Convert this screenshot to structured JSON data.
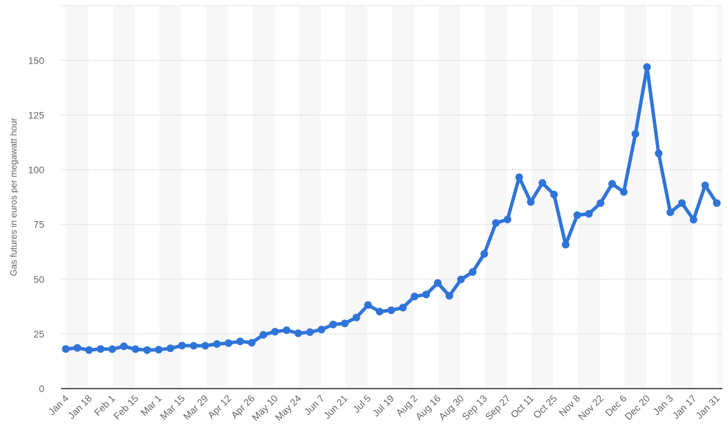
{
  "chart_data": {
    "type": "line",
    "ylabel": "Gas futures in euros per megawatt hour",
    "xlabel": "",
    "ylim": [
      0,
      175
    ],
    "y_ticks": [
      0,
      25,
      50,
      75,
      100,
      125,
      150
    ],
    "grid": "horizontal dotted",
    "x_tick_labels": [
      "Jan 4",
      "Jan 18",
      "Feb 1",
      "Feb 15",
      "Mar 1",
      "Mar 15",
      "Mar 29",
      "Apr 12",
      "Apr 26",
      "May 10",
      "May 24",
      "Jun 7",
      "Jun 21",
      "Jul 5",
      "Jul 19",
      "Aug 2",
      "Aug 16",
      "Aug 30",
      "Sep 13",
      "Sep 27",
      "Oct 11",
      "Oct 25",
      "Nov 8",
      "Nov 22",
      "Dec 6",
      "Dec 20",
      "Jan 3",
      "Jan 17",
      "Jan 31"
    ],
    "series": [
      {
        "color": "#2f74d9",
        "values": [
          18.1,
          18.6,
          17.6,
          18.1,
          18.0,
          19.3,
          18.0,
          17.6,
          17.8,
          18.4,
          19.7,
          19.6,
          19.6,
          20.4,
          20.8,
          21.6,
          21.0,
          24.6,
          26.0,
          26.7,
          25.3,
          25.8,
          27.0,
          29.3,
          29.8,
          32.5,
          38.2,
          35.2,
          35.8,
          37.0,
          42.1,
          43.0,
          48.3,
          42.4,
          49.9,
          53.3,
          61.6,
          75.7,
          77.3,
          96.6,
          85.3,
          94.0,
          88.7,
          65.8,
          79.3,
          79.9,
          84.8,
          93.6,
          89.9,
          116.4,
          147.0,
          107.5,
          80.6,
          84.8,
          77.2,
          92.9,
          84.8
        ]
      }
    ]
  }
}
